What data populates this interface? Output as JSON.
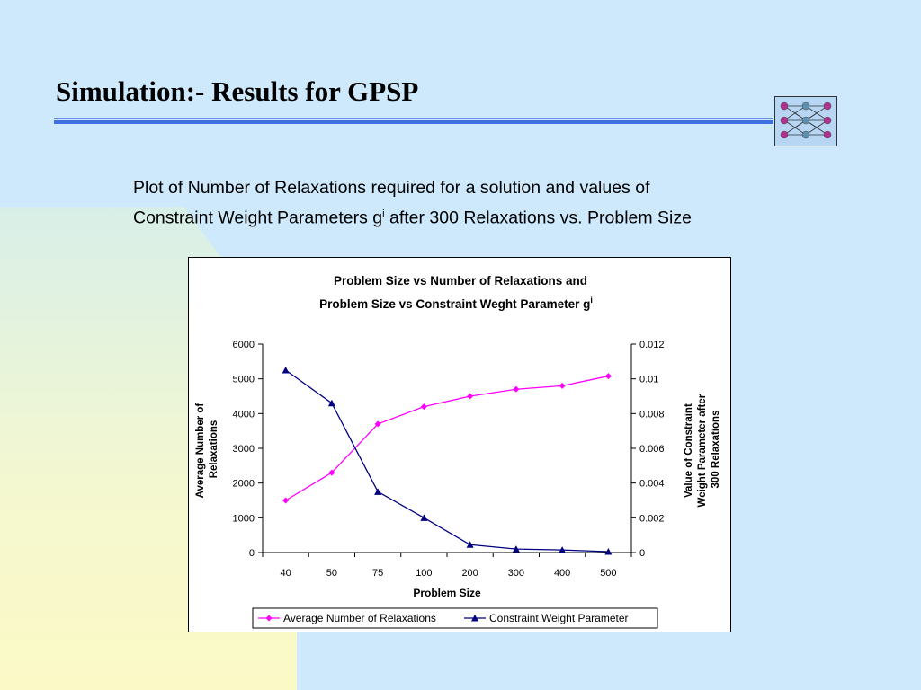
{
  "slide": {
    "title": "Simulation:- Results for GPSP",
    "subtitle_line1": "Plot of Number of Relaxations required for a solution and values of",
    "subtitle_line2_pre": "Constraint Weight Parameters g",
    "subtitle_line2_sup": "i",
    "subtitle_line2_post": " after 300 Relaxations vs. Problem Size"
  },
  "colors": {
    "relaxations": "#ff00ff",
    "constraint": "#000080"
  },
  "chart_data": {
    "type": "line",
    "title_line1": "Problem Size vs Number of Relaxations and",
    "title_line2": "Problem Size vs Constraint Weght Parameter g",
    "title_line2_sup": "i",
    "xlabel": "Problem Size",
    "ylabel_left": [
      "Average Number of",
      "Relaxations"
    ],
    "ylabel_right": [
      "Value of Constraint",
      "Weight Parameter after",
      "300 Relaxations"
    ],
    "categories": [
      "40",
      "50",
      "75",
      "100",
      "200",
      "300",
      "400",
      "500"
    ],
    "y_left": {
      "min": 0,
      "max": 6000,
      "ticks": [
        "0",
        "1000",
        "2000",
        "3000",
        "4000",
        "5000",
        "6000"
      ]
    },
    "y_right": {
      "min": 0,
      "max": 0.012,
      "ticks": [
        "0",
        "0.002",
        "0.004",
        "0.006",
        "0.008",
        "0.01",
        "0.012"
      ]
    },
    "grid": false,
    "legend_position": "bottom",
    "series": [
      {
        "name": "Average Number of Relaxations",
        "axis": "left",
        "marker": "diamond",
        "values": [
          1500,
          2300,
          3700,
          4200,
          4500,
          4700,
          4800,
          5080
        ]
      },
      {
        "name": "Constraint Weight Parameter",
        "axis": "right",
        "marker": "triangle",
        "values": [
          0.0105,
          0.0086,
          0.0035,
          0.002,
          0.00045,
          0.0002,
          0.00015,
          5e-05
        ]
      }
    ]
  }
}
